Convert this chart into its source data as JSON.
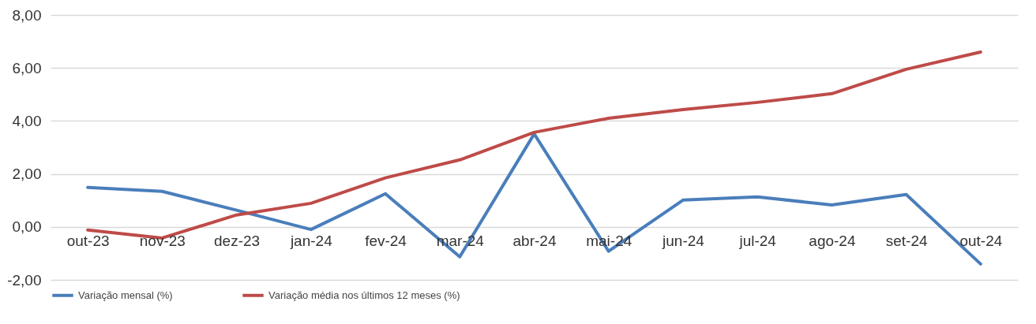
{
  "chart_data": {
    "type": "line",
    "categories": [
      "out-23",
      "nov-23",
      "dez-23",
      "jan-24",
      "fev-24",
      "mar-24",
      "abr-24",
      "mai-24",
      "jun-24",
      "jul-24",
      "ago-24",
      "set-24",
      "out-24"
    ],
    "series": [
      {
        "name": "Variação mensal (%)",
        "color": "#4a7ebb",
        "values": [
          1.49,
          1.34,
          0.63,
          -0.1,
          1.25,
          -1.13,
          3.51,
          -0.92,
          1.01,
          1.13,
          0.83,
          1.22,
          -1.4
        ]
      },
      {
        "name": "Variação média nos últimos 12 meses (%)",
        "color": "#be4b48",
        "values": [
          -0.12,
          -0.42,
          0.45,
          0.89,
          1.85,
          2.53,
          3.57,
          4.1,
          4.43,
          4.7,
          5.03,
          5.95,
          6.6
        ]
      }
    ],
    "ylim": [
      -2,
      8
    ],
    "yticks": [
      {
        "value": -2,
        "label": "-2,00"
      },
      {
        "value": 0,
        "label": "0,00"
      },
      {
        "value": 2,
        "label": "2,00"
      },
      {
        "value": 4,
        "label": "4,00"
      },
      {
        "value": 6,
        "label": "6,00"
      },
      {
        "value": 8,
        "label": "8,00"
      }
    ],
    "grid": "y",
    "legend": "bottom",
    "marker": "none",
    "line_style": "solid"
  }
}
